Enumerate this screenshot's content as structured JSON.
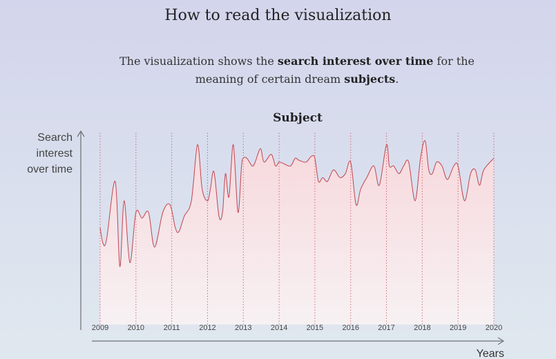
{
  "heading": "How to read the visualization",
  "description": {
    "pre": "The visualization shows the ",
    "bold1": "search interest over time",
    "mid": " for the meaning of certain dream ",
    "bold2": "subjects",
    "post": "."
  },
  "chart_data": {
    "type": "area",
    "title": "Subject",
    "ylabel_lines": [
      "Search",
      "interest",
      "over time"
    ],
    "xlabel": "Years",
    "ticks": [
      "2009",
      "2010",
      "2011",
      "2012",
      "2013",
      "2014",
      "2015",
      "2016",
      "2017",
      "2018",
      "2019",
      "2020"
    ],
    "x_range": [
      2009,
      2020
    ],
    "y_range": [
      0,
      100
    ],
    "colors": {
      "line": "#c0454e",
      "fill_top": "#f7d8dc",
      "fill_bottom": "#f7f1f3",
      "axis": "#555555"
    },
    "series": [
      {
        "name": "Search interest",
        "points": [
          [
            2009.0,
            50
          ],
          [
            2009.08,
            42
          ],
          [
            2009.18,
            44
          ],
          [
            2009.42,
            74
          ],
          [
            2009.55,
            30
          ],
          [
            2009.67,
            64
          ],
          [
            2009.83,
            32
          ],
          [
            2010.0,
            58
          ],
          [
            2010.17,
            55
          ],
          [
            2010.35,
            58
          ],
          [
            2010.52,
            40
          ],
          [
            2010.75,
            58
          ],
          [
            2010.95,
            62
          ],
          [
            2011.1,
            50
          ],
          [
            2011.2,
            48
          ],
          [
            2011.35,
            56
          ],
          [
            2011.55,
            64
          ],
          [
            2011.72,
            93
          ],
          [
            2011.85,
            70
          ],
          [
            2012.0,
            64
          ],
          [
            2012.08,
            70
          ],
          [
            2012.18,
            79
          ],
          [
            2012.32,
            56
          ],
          [
            2012.42,
            58
          ],
          [
            2012.5,
            78
          ],
          [
            2012.6,
            66
          ],
          [
            2012.72,
            93
          ],
          [
            2012.85,
            58
          ],
          [
            2012.95,
            82
          ],
          [
            2013.0,
            86
          ],
          [
            2013.1,
            86
          ],
          [
            2013.25,
            82
          ],
          [
            2013.33,
            84
          ],
          [
            2013.48,
            91
          ],
          [
            2013.58,
            84
          ],
          [
            2013.78,
            88
          ],
          [
            2013.9,
            82
          ],
          [
            2014.0,
            84
          ],
          [
            2014.15,
            83
          ],
          [
            2014.32,
            82
          ],
          [
            2014.45,
            86
          ],
          [
            2014.55,
            85
          ],
          [
            2014.75,
            84
          ],
          [
            2014.9,
            87
          ],
          [
            2015.0,
            86
          ],
          [
            2015.1,
            74
          ],
          [
            2015.22,
            76
          ],
          [
            2015.35,
            74
          ],
          [
            2015.52,
            80
          ],
          [
            2015.7,
            76
          ],
          [
            2015.85,
            78
          ],
          [
            2016.0,
            84
          ],
          [
            2016.15,
            62
          ],
          [
            2016.28,
            70
          ],
          [
            2016.45,
            76
          ],
          [
            2016.65,
            82
          ],
          [
            2016.8,
            72
          ],
          [
            2017.0,
            93
          ],
          [
            2017.08,
            82
          ],
          [
            2017.2,
            82
          ],
          [
            2017.35,
            78
          ],
          [
            2017.48,
            82
          ],
          [
            2017.62,
            84
          ],
          [
            2017.8,
            64
          ],
          [
            2017.95,
            86
          ],
          [
            2018.08,
            95
          ],
          [
            2018.18,
            80
          ],
          [
            2018.28,
            78
          ],
          [
            2018.4,
            84
          ],
          [
            2018.55,
            82
          ],
          [
            2018.7,
            75
          ],
          [
            2018.88,
            82
          ],
          [
            2019.0,
            82
          ],
          [
            2019.18,
            64
          ],
          [
            2019.35,
            78
          ],
          [
            2019.48,
            80
          ],
          [
            2019.6,
            72
          ],
          [
            2019.72,
            80
          ],
          [
            2020.0,
            86
          ]
        ]
      }
    ]
  }
}
